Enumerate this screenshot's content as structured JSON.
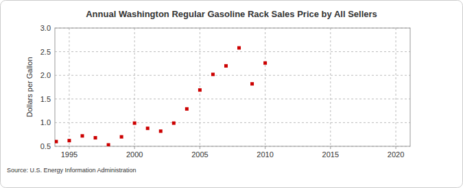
{
  "chart_data": {
    "type": "scatter",
    "title": "Annual Washington Regular Gasoline Rack Sales Price by All Sellers",
    "y_label": "Dollars per Gallon",
    "source": "Source: U.S. Energy Information Administration",
    "x": [
      1994,
      1995,
      1996,
      1997,
      1998,
      1999,
      2000,
      2001,
      2002,
      2003,
      2004,
      2005,
      2006,
      2007,
      2008,
      2009,
      2010
    ],
    "values": [
      0.6,
      0.62,
      0.72,
      0.68,
      0.53,
      0.7,
      0.99,
      0.88,
      0.82,
      0.99,
      1.29,
      1.69,
      2.02,
      2.2,
      2.58,
      1.82,
      2.26
    ],
    "color": "#cc0000",
    "marker": "square",
    "xlim": [
      1993.9,
      2021.1
    ],
    "xticks": [
      1995,
      2000,
      2005,
      2010,
      2015,
      2020
    ],
    "ylim": [
      0.5,
      3.0
    ],
    "yticks": [
      0.5,
      {
        "value": 1.0,
        "label": "1.0"
      },
      1.5,
      {
        "value": 2.0,
        "label": "2.0"
      },
      2.5,
      {
        "value": 3.0,
        "label": "3.0"
      }
    ],
    "grid": true
  }
}
